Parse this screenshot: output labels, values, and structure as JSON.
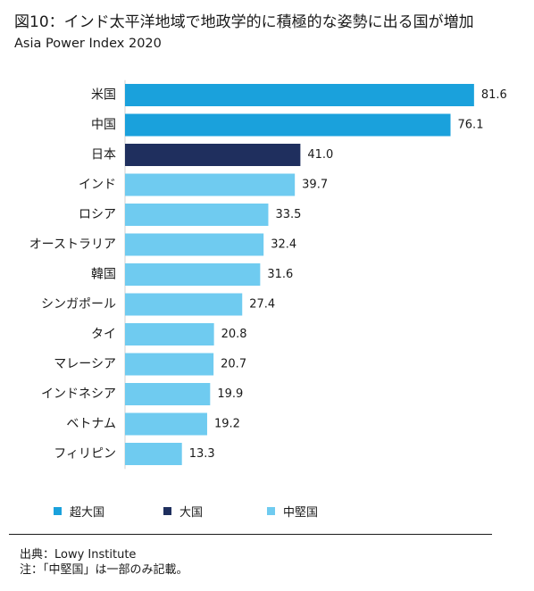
{
  "header": {
    "title": "図10：インド太平洋地域で地政学的に積極的な姿勢に出る国が増加",
    "subtitle": "Asia Power Index 2020"
  },
  "colors": {
    "superpower": "#1aa1dc",
    "major_power": "#1f2f5e",
    "middle_power": "#6fcbf0"
  },
  "legend": [
    {
      "label": "超大国",
      "color": "#1aa1dc"
    },
    {
      "label": "大国",
      "color": "#1f2f5e"
    },
    {
      "label": "中堅国",
      "color": "#6fcbf0"
    }
  ],
  "chart_data": {
    "type": "bar",
    "orientation": "horizontal",
    "categories": [
      "米国",
      "中国",
      "日本",
      "インド",
      "ロシア",
      "オーストラリア",
      "韓国",
      "シンガポール",
      "タイ",
      "マレーシア",
      "インドネシア",
      "ベトナム",
      "フィリピン"
    ],
    "values": [
      81.6,
      76.1,
      41.0,
      39.7,
      33.5,
      32.4,
      31.6,
      27.4,
      20.8,
      20.7,
      19.9,
      19.2,
      13.3
    ],
    "value_labels": [
      "81.6",
      "76.1",
      "41.0",
      "39.7",
      "33.5",
      "32.4",
      "31.6",
      "27.4",
      "20.8",
      "20.7",
      "19.9",
      "19.2",
      "13.3"
    ],
    "groups": [
      "超大国",
      "超大国",
      "大国",
      "中堅国",
      "中堅国",
      "中堅国",
      "中堅国",
      "中堅国",
      "中堅国",
      "中堅国",
      "中堅国",
      "中堅国",
      "中堅国"
    ],
    "xlim": [
      0,
      100
    ],
    "grid": false,
    "legend_position": "bottom"
  },
  "footer": {
    "source": "出典：Lowy Institute",
    "note": "注：「中堅国」は一部のみ記載。"
  }
}
